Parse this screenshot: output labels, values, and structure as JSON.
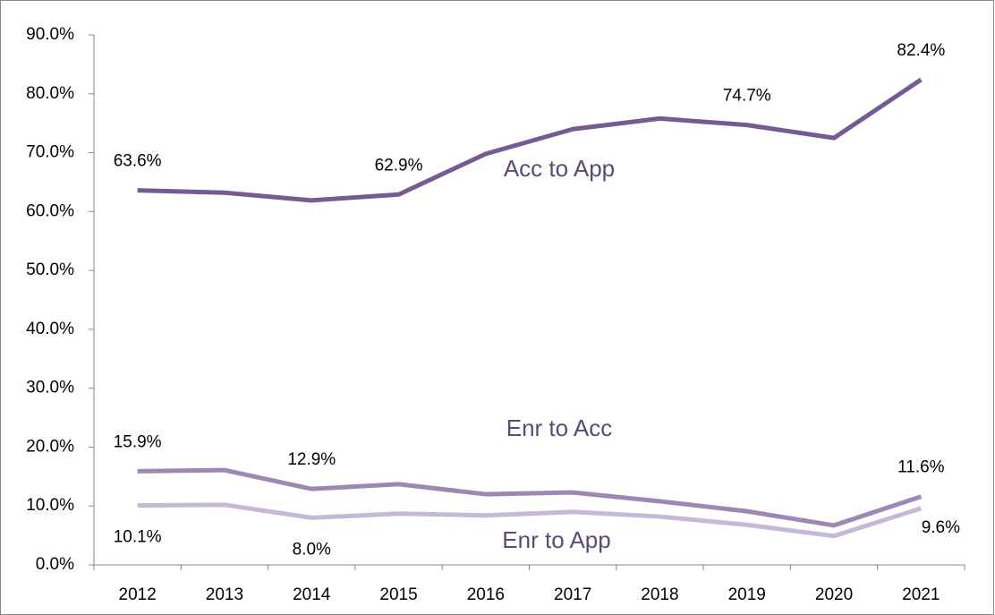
{
  "chart_data": {
    "type": "line",
    "categories": [
      "2012",
      "2013",
      "2014",
      "2015",
      "2016",
      "2017",
      "2018",
      "2019",
      "2020",
      "2021"
    ],
    "series": [
      {
        "name": "Acc to App",
        "color": "#765a96",
        "values": [
          63.6,
          63.2,
          61.9,
          62.9,
          69.8,
          74.0,
          75.8,
          74.7,
          72.5,
          82.4
        ],
        "value_labels": [
          "63.6%",
          null,
          null,
          "62.9%",
          null,
          null,
          null,
          "74.7%",
          null,
          "82.4%"
        ]
      },
      {
        "name": "Enr to Acc",
        "color": "#9c88b4",
        "values": [
          15.9,
          16.1,
          12.9,
          13.7,
          12.0,
          12.3,
          10.8,
          9.1,
          6.7,
          11.6
        ],
        "value_labels": [
          "15.9%",
          null,
          "12.9%",
          null,
          null,
          null,
          null,
          null,
          null,
          "11.6%"
        ]
      },
      {
        "name": "Enr to App",
        "color": "#c5b9d6",
        "values": [
          10.1,
          10.2,
          8.0,
          8.7,
          8.4,
          9.0,
          8.2,
          6.8,
          4.9,
          9.6
        ],
        "value_labels": [
          "10.1%",
          null,
          "8.0%",
          null,
          null,
          null,
          null,
          null,
          null,
          "9.6%"
        ]
      }
    ],
    "ylim": [
      0,
      90
    ],
    "yticks": [
      {
        "value": 0,
        "label": "0.0%"
      },
      {
        "value": 10,
        "label": "10.0%"
      },
      {
        "value": 20,
        "label": "20.0%"
      },
      {
        "value": 30,
        "label": "30.0%"
      },
      {
        "value": 40,
        "label": "40.0%"
      },
      {
        "value": 50,
        "label": "50.0%"
      },
      {
        "value": 60,
        "label": "60.0%"
      },
      {
        "value": 70,
        "label": "70.0%"
      },
      {
        "value": 80,
        "label": "80.0%"
      },
      {
        "value": 90,
        "label": "90.0%"
      }
    ]
  }
}
